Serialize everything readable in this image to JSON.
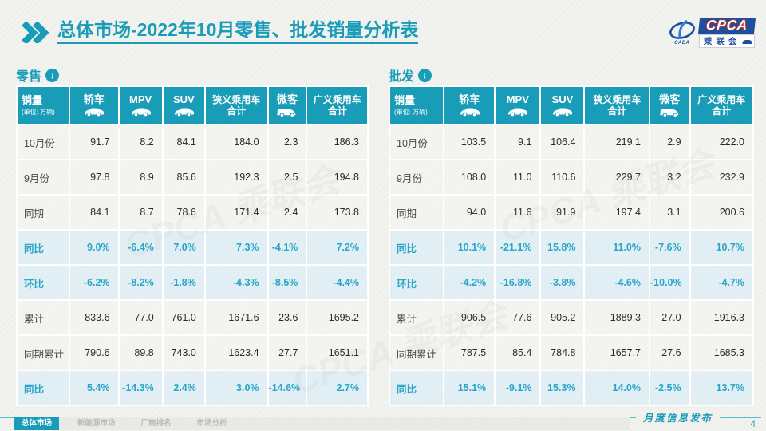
{
  "title": {
    "bold": "总体市场",
    "rest": "-2022年10月零售、批发销量分析表"
  },
  "logo": {
    "emblem_text": "CADA",
    "main": "CPCA",
    "sub": "乘联会"
  },
  "watermark": "CPCA 乘联会",
  "colors": {
    "teal": "#199CB7",
    "percent_text": "#2AA5C8",
    "row_highlight": "#E2F0F6",
    "row_normal": "#F4F4F1",
    "logo_blue": "#1E4F9C",
    "logo_red": "#CF3626"
  },
  "tables": [
    {
      "section_label": "零售",
      "section_icon": "circle-down-arrow",
      "columns": [
        {
          "key": "sales",
          "label": "销量",
          "sublabel": "(单位: 万辆)"
        },
        {
          "key": "sedan",
          "label": "轿车",
          "icon": "car"
        },
        {
          "key": "mpv",
          "label": "MPV",
          "icon": "car"
        },
        {
          "key": "suv",
          "label": "SUV",
          "icon": "car"
        },
        {
          "key": "narrow-pv-total",
          "label": "狭义乘用车",
          "label2": "合计"
        },
        {
          "key": "microvan",
          "label": "微客",
          "icon": "van"
        },
        {
          "key": "broad-pv-total",
          "label": "广义乘用车",
          "label2": "合计"
        }
      ],
      "rows": [
        {
          "label": "10月份",
          "percent": false,
          "values": [
            "91.7",
            "8.2",
            "84.1",
            "184.0",
            "2.3",
            "186.3"
          ]
        },
        {
          "label": "9月份",
          "percent": false,
          "values": [
            "97.8",
            "8.9",
            "85.6",
            "192.3",
            "2.5",
            "194.8"
          ]
        },
        {
          "label": "同期",
          "percent": false,
          "values": [
            "84.1",
            "8.7",
            "78.6",
            "171.4",
            "2.4",
            "173.8"
          ]
        },
        {
          "label": "同比",
          "percent": true,
          "values": [
            "9.0%",
            "-6.4%",
            "7.0%",
            "7.3%",
            "-4.1%",
            "7.2%"
          ]
        },
        {
          "label": "环比",
          "percent": true,
          "values": [
            "-6.2%",
            "-8.2%",
            "-1.8%",
            "-4.3%",
            "-8.5%",
            "-4.4%"
          ]
        },
        {
          "label": "累计",
          "percent": false,
          "values": [
            "833.6",
            "77.0",
            "761.0",
            "1671.6",
            "23.6",
            "1695.2"
          ]
        },
        {
          "label": "同期累计",
          "percent": false,
          "values": [
            "790.6",
            "89.8",
            "743.0",
            "1623.4",
            "27.7",
            "1651.1"
          ]
        },
        {
          "label": "同比",
          "percent": true,
          "values": [
            "5.4%",
            "-14.3%",
            "2.4%",
            "3.0%",
            "-14.6%",
            "2.7%"
          ]
        }
      ]
    },
    {
      "section_label": "批发",
      "section_icon": "circle-down-arrow",
      "columns": [
        {
          "key": "sales",
          "label": "销量",
          "sublabel": "(单位: 万辆)"
        },
        {
          "key": "sedan",
          "label": "轿车",
          "icon": "car"
        },
        {
          "key": "mpv",
          "label": "MPV",
          "icon": "car"
        },
        {
          "key": "suv",
          "label": "SUV",
          "icon": "car"
        },
        {
          "key": "narrow-pv-total",
          "label": "狭义乘用车",
          "label2": "合计"
        },
        {
          "key": "microvan",
          "label": "微客",
          "icon": "van"
        },
        {
          "key": "broad-pv-total",
          "label": "广义乘用车",
          "label2": "合计"
        }
      ],
      "rows": [
        {
          "label": "10月份",
          "percent": false,
          "values": [
            "103.5",
            "9.1",
            "106.4",
            "219.1",
            "2.9",
            "222.0"
          ]
        },
        {
          "label": "9月份",
          "percent": false,
          "values": [
            "108.0",
            "11.0",
            "110.6",
            "229.7",
            "3.2",
            "232.9"
          ]
        },
        {
          "label": "同期",
          "percent": false,
          "values": [
            "94.0",
            "11.6",
            "91.9",
            "197.4",
            "3.1",
            "200.6"
          ]
        },
        {
          "label": "同比",
          "percent": true,
          "values": [
            "10.1%",
            "-21.1%",
            "15.8%",
            "11.0%",
            "-7.6%",
            "10.7%"
          ]
        },
        {
          "label": "环比",
          "percent": true,
          "values": [
            "-4.2%",
            "-16.8%",
            "-3.8%",
            "-4.6%",
            "-10.0%",
            "-4.7%"
          ]
        },
        {
          "label": "累计",
          "percent": false,
          "values": [
            "906.5",
            "77.6",
            "905.2",
            "1889.3",
            "27.0",
            "1916.3"
          ]
        },
        {
          "label": "同期累计",
          "percent": false,
          "values": [
            "787.5",
            "85.4",
            "784.8",
            "1657.7",
            "27.6",
            "1685.3"
          ]
        },
        {
          "label": "同比",
          "percent": true,
          "values": [
            "15.1%",
            "-9.1%",
            "15.3%",
            "14.0%",
            "-2.5%",
            "13.7%"
          ]
        }
      ]
    }
  ],
  "footer": {
    "nav": [
      {
        "label": "总体市场",
        "active": true
      },
      {
        "label": "新能源市场",
        "active": false
      },
      {
        "label": "厂商排名",
        "active": false
      },
      {
        "label": "市场分析",
        "active": false
      }
    ],
    "release_label": "月度信息发布",
    "page_number": "4"
  }
}
